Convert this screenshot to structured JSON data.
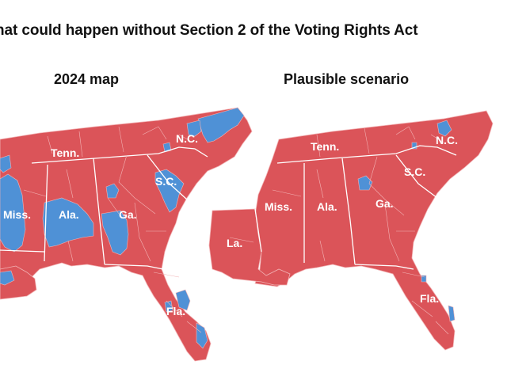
{
  "headline": "hat could happen without Section 2 of the Voting Rights Act",
  "maps": [
    {
      "title": "2024 map",
      "labels": {
        "tn": "Tenn.",
        "nc": "N.C.",
        "sc": "S.C.",
        "ms": "Miss.",
        "al": "Ala.",
        "ga": "Ga.",
        "fl": "Fla."
      }
    },
    {
      "title": "Plausible scenario",
      "labels": {
        "tn": "Tenn.",
        "nc": "N.C.",
        "sc": "S.C.",
        "ms": "Miss.",
        "al": "Ala.",
        "ga": "Ga.",
        "la": "La.",
        "fl": "Fla."
      }
    }
  ],
  "colors": {
    "republican": "#db5459",
    "democrat": "#4f91d6",
    "border": "#f2b3b5"
  }
}
